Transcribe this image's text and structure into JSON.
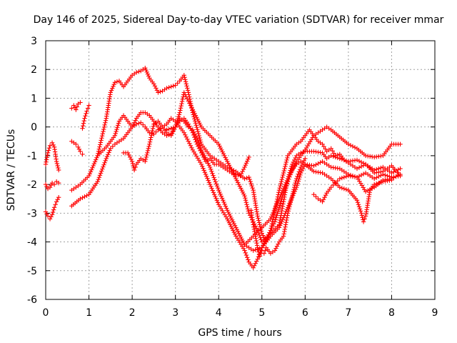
{
  "chart_data": {
    "type": "scatter",
    "title": "Day 146 of 2025, Sidereal Day-to-day VTEC variation (SDTVAR) for receiver mmar",
    "xlabel": "GPS time / hours",
    "ylabel": "SDTVAR / TECUs",
    "xlim": [
      0,
      9
    ],
    "ylim": [
      -6,
      3
    ],
    "xticks": [
      "0",
      "1",
      "2",
      "3",
      "4",
      "5",
      "6",
      "7",
      "8",
      "9"
    ],
    "yticks": [
      "-6",
      "-5",
      "-4",
      "-3",
      "-2",
      "-1",
      "0",
      "1",
      "2",
      "3"
    ],
    "grid": true,
    "marker": "plus",
    "colors": {
      "series": "#ff0000",
      "grid": "#a0a0a0",
      "axis": "#000000"
    },
    "series": [
      {
        "x": [
          0.0,
          0.05,
          0.1,
          0.15,
          0.2,
          0.25,
          0.3
        ],
        "y": [
          -1.3,
          -0.9,
          -0.65,
          -0.55,
          -0.7,
          -1.2,
          -1.5
        ]
      },
      {
        "x": [
          0.0,
          0.05,
          0.1,
          0.15,
          0.2,
          0.25,
          0.3
        ],
        "y": [
          -2.0,
          -2.15,
          -2.1,
          -1.95,
          -2.0,
          -1.9,
          -1.95
        ]
      },
      {
        "x": [
          0.0,
          0.05,
          0.1,
          0.15,
          0.2,
          0.25,
          0.3
        ],
        "y": [
          -2.95,
          -3.1,
          -3.2,
          -3.05,
          -2.8,
          -2.6,
          -2.45
        ]
      },
      {
        "x": [
          0.6,
          0.65,
          0.7,
          0.75,
          0.8
        ],
        "y": [
          0.65,
          0.75,
          0.6,
          0.8,
          0.85
        ]
      },
      {
        "x": [
          0.85,
          0.9,
          0.95,
          1.0
        ],
        "y": [
          -0.05,
          0.3,
          0.55,
          0.75
        ]
      },
      {
        "x": [
          0.6,
          0.65,
          0.7,
          0.75,
          0.8,
          0.85
        ],
        "y": [
          -0.5,
          -0.55,
          -0.6,
          -0.7,
          -0.85,
          -0.95
        ]
      },
      {
        "x": [
          0.6,
          0.8,
          1.0,
          1.2,
          1.4,
          1.5,
          1.6,
          1.7,
          1.8,
          1.9,
          2.0,
          2.1,
          2.2,
          2.3,
          2.4,
          2.5,
          2.6,
          2.7,
          2.8,
          2.9,
          3.0,
          3.1,
          3.2,
          3.3,
          3.4,
          3.6,
          3.8,
          4.0,
          4.2,
          4.4,
          4.6,
          4.7,
          4.8,
          4.9,
          5.0,
          5.1,
          5.2,
          5.3,
          5.4,
          5.5,
          5.6,
          5.7,
          5.8,
          5.9,
          6.0,
          6.1,
          6.2,
          6.3,
          6.4,
          6.5,
          6.6,
          6.7,
          6.8,
          6.9,
          7.0,
          7.2,
          7.4,
          7.6,
          7.8,
          8.0,
          8.2
        ],
        "y": [
          -2.2,
          -2.0,
          -1.7,
          -1.0,
          0.3,
          1.2,
          1.55,
          1.6,
          1.4,
          1.6,
          1.8,
          1.9,
          1.95,
          2.05,
          1.7,
          1.5,
          1.2,
          1.25,
          1.35,
          1.4,
          1.45,
          1.6,
          1.8,
          1.2,
          0.5,
          -0.6,
          -1.0,
          -1.2,
          -1.4,
          -1.55,
          -1.8,
          -1.75,
          -2.2,
          -3.1,
          -3.7,
          -4.0,
          -3.6,
          -2.9,
          -2.2,
          -1.6,
          -1.0,
          -0.8,
          -0.6,
          -0.5,
          -0.3,
          -0.1,
          -0.3,
          -0.5,
          -0.6,
          -0.85,
          -0.75,
          -1.0,
          -0.95,
          -1.15,
          -1.25,
          -1.45,
          -1.3,
          -1.6,
          -1.55,
          -1.35,
          -1.7
        ]
      },
      {
        "x": [
          0.6,
          0.8,
          1.0,
          1.2,
          1.4,
          1.5,
          1.6,
          1.7,
          1.8,
          1.9,
          2.0,
          2.1,
          2.2,
          2.3,
          2.4,
          2.5,
          2.6,
          2.7,
          2.8,
          2.9,
          3.0,
          3.1,
          3.2,
          3.3,
          3.4,
          3.6,
          3.8,
          4.0,
          4.2,
          4.4,
          4.6,
          4.7,
          4.8,
          4.9,
          5.0,
          5.2,
          5.4,
          5.5,
          5.6,
          5.7,
          5.8,
          5.9,
          6.0,
          6.2,
          6.4,
          6.5,
          6.6,
          6.8,
          7.0,
          7.2,
          7.4,
          7.6,
          7.8,
          8.0,
          8.2
        ],
        "y": [
          -2.75,
          -2.5,
          -2.35,
          -1.9,
          -1.1,
          -0.75,
          -0.6,
          -0.5,
          -0.4,
          -0.2,
          0.0,
          0.3,
          0.5,
          0.5,
          0.4,
          0.2,
          0.0,
          -0.2,
          -0.3,
          -0.25,
          0.0,
          0.5,
          1.2,
          0.9,
          0.6,
          0.0,
          -0.3,
          -0.6,
          -1.2,
          -1.8,
          -2.4,
          -3.0,
          -3.3,
          -3.6,
          -4.0,
          -3.7,
          -3.4,
          -2.6,
          -1.8,
          -1.3,
          -1.0,
          -0.9,
          -0.85,
          -0.85,
          -0.9,
          -1.1,
          -1.0,
          -1.1,
          -1.2,
          -1.15,
          -1.3,
          -1.5,
          -1.4,
          -1.6,
          -1.45
        ]
      },
      {
        "x": [
          1.2,
          1.4,
          1.6,
          1.7,
          1.8,
          1.9,
          2.0,
          2.1,
          2.2,
          2.3,
          2.4,
          2.5,
          2.6,
          2.7,
          2.8,
          2.9,
          3.0,
          3.1,
          3.2,
          3.3,
          3.4,
          3.5,
          3.6,
          3.8,
          4.0,
          4.2,
          4.4,
          4.6,
          4.8,
          5.0,
          5.2,
          5.4,
          5.6,
          5.8,
          5.9,
          6.0,
          6.2,
          6.4,
          6.6,
          6.8,
          7.0,
          7.2,
          7.4,
          7.6,
          7.8,
          8.0,
          8.2
        ],
        "y": [
          -1.0,
          -0.7,
          -0.3,
          0.2,
          0.4,
          0.2,
          0.0,
          0.1,
          0.15,
          0.0,
          -0.2,
          -0.25,
          -0.1,
          0.0,
          -0.2,
          -0.3,
          0.0,
          0.3,
          0.2,
          0.0,
          -0.1,
          -0.4,
          -0.8,
          -1.4,
          -2.2,
          -2.9,
          -3.5,
          -4.1,
          -4.3,
          -4.2,
          -3.8,
          -3.5,
          -2.8,
          -2.1,
          -1.6,
          -1.3,
          -1.35,
          -1.2,
          -1.4,
          -1.45,
          -1.65,
          -1.75,
          -2.25,
          -2.1,
          -1.85,
          -1.8,
          -1.65
        ]
      },
      {
        "x": [
          1.8,
          1.9,
          2.0,
          2.05,
          2.1,
          2.2,
          2.3,
          2.4,
          2.5,
          2.6,
          2.7,
          2.8,
          2.9,
          3.0,
          3.1,
          3.2,
          3.3,
          3.4,
          3.6,
          3.8,
          4.0,
          4.2,
          4.4,
          4.6,
          4.7,
          4.8,
          4.9,
          5.0,
          5.1,
          5.2,
          5.3,
          5.4,
          5.5,
          5.6,
          5.7,
          5.8,
          5.9,
          6.0,
          6.2,
          6.4,
          6.6,
          6.8,
          7.0,
          7.2,
          7.3,
          7.35,
          7.4,
          7.5,
          7.6,
          7.8,
          8.0
        ],
        "y": [
          -0.9,
          -0.9,
          -1.2,
          -1.5,
          -1.3,
          -1.1,
          -1.2,
          -0.6,
          0.1,
          0.2,
          0.0,
          0.1,
          0.3,
          0.2,
          0.0,
          -0.2,
          -0.5,
          -0.8,
          -1.3,
          -2.0,
          -2.7,
          -3.2,
          -3.8,
          -4.3,
          -4.7,
          -4.9,
          -4.6,
          -4.2,
          -3.9,
          -3.6,
          -3.3,
          -2.8,
          -2.3,
          -1.9,
          -1.5,
          -1.3,
          -1.2,
          -1.3,
          -1.55,
          -1.6,
          -1.8,
          -2.1,
          -2.2,
          -2.55,
          -3.0,
          -3.3,
          -3.1,
          -2.2,
          -2.0,
          -1.9,
          -1.85
        ]
      },
      {
        "x": [
          2.8,
          3.0,
          3.1,
          3.2,
          3.3,
          3.4,
          3.5,
          3.6,
          3.7,
          3.8,
          3.9,
          4.0,
          4.1,
          4.2,
          4.3,
          4.4,
          4.5,
          4.6,
          4.7
        ],
        "y": [
          -0.1,
          0.0,
          0.2,
          0.3,
          0.1,
          -0.2,
          -0.6,
          -0.9,
          -1.2,
          -1.1,
          -1.3,
          -1.3,
          -1.4,
          -1.5,
          -1.6,
          -1.65,
          -1.7,
          -1.4,
          -1.05
        ]
      },
      {
        "x": [
          4.6,
          4.8,
          5.0,
          5.2,
          5.4,
          5.6,
          5.8,
          6.0,
          6.2,
          6.4,
          6.5,
          6.6,
          6.8,
          7.0,
          7.2,
          7.4,
          7.6,
          7.8,
          8.0,
          8.2
        ],
        "y": [
          -4.1,
          -3.8,
          -3.5,
          -3.2,
          -2.5,
          -1.8,
          -1.2,
          -0.8,
          -0.3,
          -0.1,
          0.0,
          -0.1,
          -0.35,
          -0.6,
          -0.75,
          -1.0,
          -1.05,
          -1.0,
          -0.6,
          -0.6
        ]
      },
      {
        "x": [
          6.2,
          6.3,
          6.4,
          6.5,
          6.6,
          6.7,
          6.8,
          6.9,
          7.0,
          7.2,
          7.4,
          7.6,
          7.8,
          8.0,
          8.2
        ],
        "y": [
          -2.35,
          -2.5,
          -2.6,
          -2.3,
          -2.1,
          -1.95,
          -1.8,
          -1.75,
          -1.7,
          -1.75,
          -1.6,
          -1.8,
          -1.65,
          -1.75,
          -1.7
        ]
      },
      {
        "x": [
          4.75,
          4.8,
          4.85,
          4.9,
          4.95,
          5.0,
          5.05,
          5.1,
          5.2,
          5.3,
          5.4,
          5.5,
          5.6,
          5.7,
          5.8,
          5.9,
          6.0
        ],
        "y": [
          -2.9,
          -3.4,
          -3.8,
          -4.2,
          -4.5,
          -4.3,
          -4.4,
          -4.2,
          -4.4,
          -4.3,
          -4.0,
          -3.8,
          -3.0,
          -2.4,
          -1.8,
          -1.4,
          -1.1
        ]
      }
    ]
  }
}
